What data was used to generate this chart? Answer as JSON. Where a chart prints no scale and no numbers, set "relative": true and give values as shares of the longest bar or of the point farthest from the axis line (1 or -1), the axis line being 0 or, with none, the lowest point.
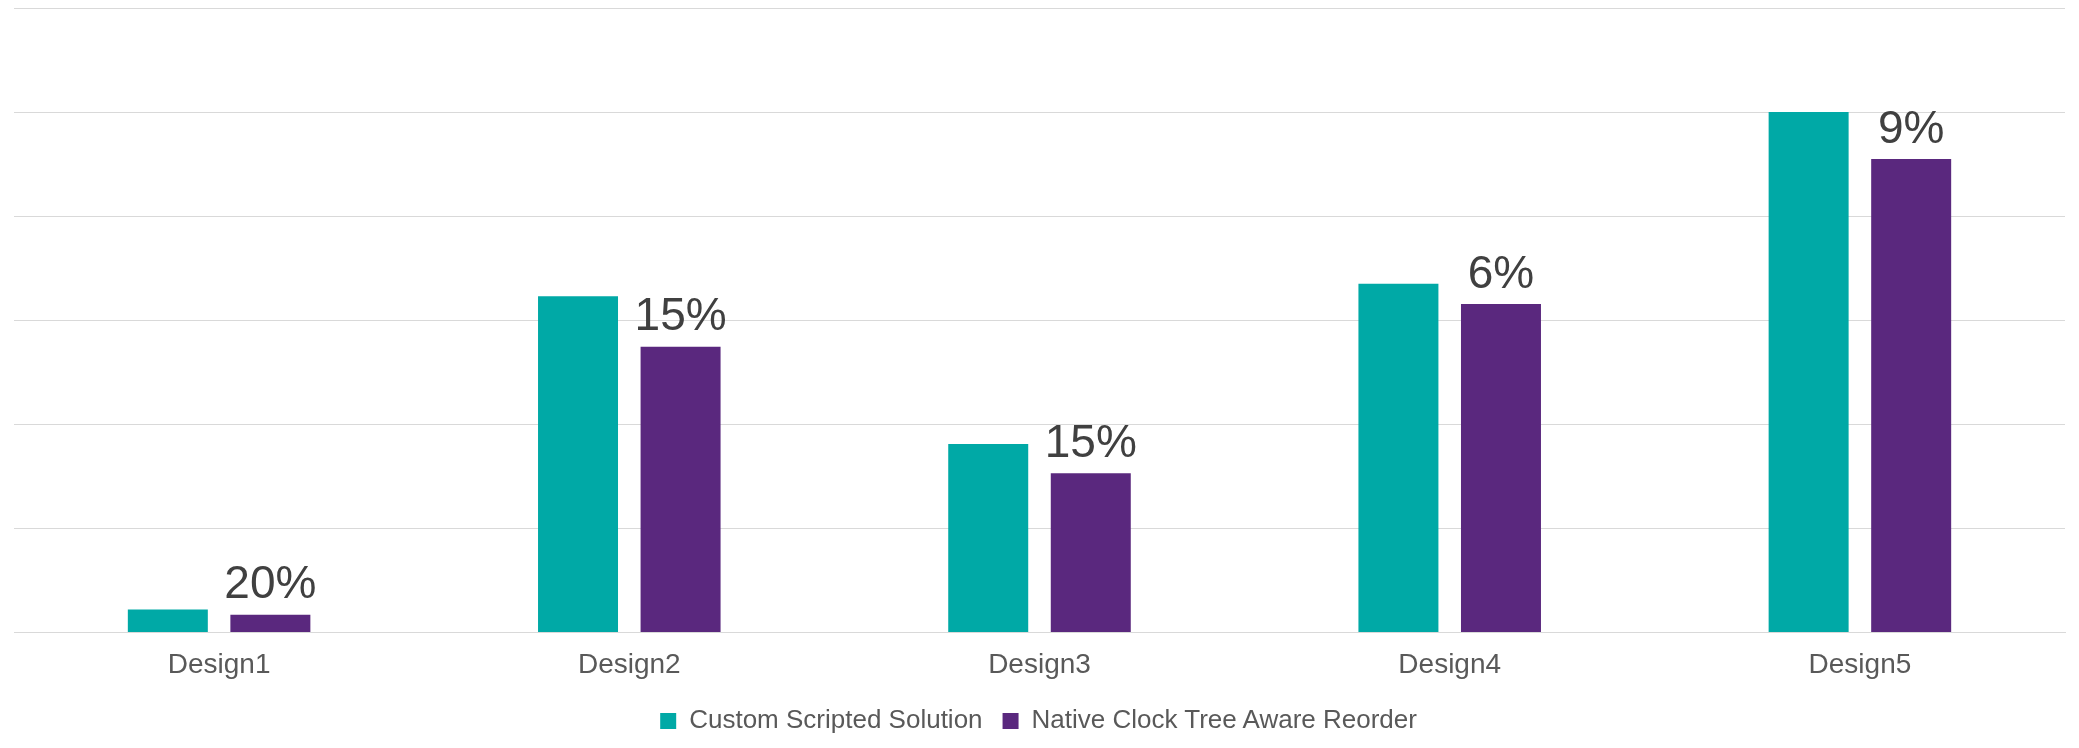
{
  "chart_data": {
    "type": "bar",
    "relative": true,
    "grid": "y",
    "legend": "bottom",
    "categories": [
      "Design1",
      "Design2",
      "Design3",
      "Design4",
      "Design5"
    ],
    "series": [
      {
        "name": "Custom Scripted Solution",
        "color": "#00a9a6",
        "values": [
          0.044,
          0.646,
          0.362,
          0.67,
          1
        ]
      },
      {
        "name": "Native Clock Tree Aware Reorder",
        "color": "#5a287e",
        "values": [
          0.034,
          0.549,
          0.306,
          0.631,
          0.91
        ]
      }
    ],
    "annotations": [
      "20%",
      "15%",
      "15%",
      "6%",
      "9%"
    ]
  }
}
